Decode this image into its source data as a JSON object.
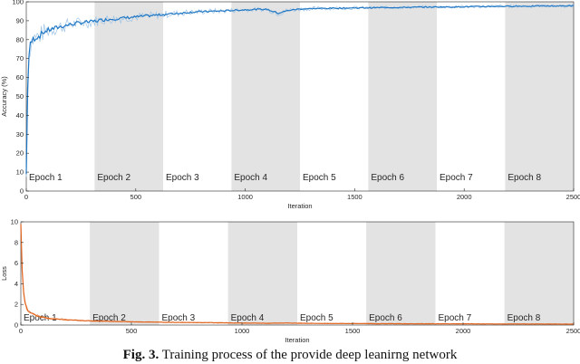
{
  "caption": {
    "lead": "Fig. 3.",
    "text": "Training process  of the  provide deep leanirng network"
  },
  "colors": {
    "accuracy": "#1f77c4",
    "accuracy_light": "#9fc4e6",
    "loss": "#e0621b",
    "loss_light": "#f2b48f",
    "epoch_shade": "#e3e3e3",
    "axis": "#262626"
  },
  "chart_data": [
    {
      "type": "line",
      "xlabel": "Iteration",
      "ylabel": "Accuracy (%)",
      "xlim": [
        0,
        2500
      ],
      "ylim": [
        0,
        100
      ],
      "xticks": [
        0,
        500,
        1000,
        1500,
        2000,
        2500
      ],
      "yticks": [
        0,
        10,
        20,
        30,
        40,
        50,
        60,
        70,
        80,
        90,
        100
      ],
      "grid": false,
      "epochs": [
        {
          "label": "Epoch 1",
          "start": 0,
          "end": 312,
          "shaded": false
        },
        {
          "label": "Epoch 2",
          "start": 312,
          "end": 625,
          "shaded": true
        },
        {
          "label": "Epoch 3",
          "start": 625,
          "end": 937,
          "shaded": false
        },
        {
          "label": "Epoch 4",
          "start": 937,
          "end": 1250,
          "shaded": true
        },
        {
          "label": "Epoch 5",
          "start": 1250,
          "end": 1562,
          "shaded": false
        },
        {
          "label": "Epoch 6",
          "start": 1562,
          "end": 1875,
          "shaded": true
        },
        {
          "label": "Epoch 7",
          "start": 1875,
          "end": 2187,
          "shaded": false
        },
        {
          "label": "Epoch 8",
          "start": 2187,
          "end": 2500,
          "shaded": true
        }
      ],
      "series": [
        {
          "x": [
            0,
            3,
            6,
            10,
            15,
            20,
            30,
            40,
            60,
            80,
            100,
            130,
            160,
            200,
            250,
            300,
            350,
            400,
            450,
            500,
            550,
            600,
            650,
            700,
            750,
            800,
            850,
            900,
            950,
            1000,
            1050,
            1100,
            1150,
            1200,
            1250,
            1300,
            1350,
            1400,
            1450,
            1500,
            1550,
            1600,
            1650,
            1700,
            1750,
            1800,
            1850,
            1900,
            1950,
            2000,
            2050,
            2100,
            2150,
            2200,
            2250,
            2300,
            2350,
            2400,
            2450,
            2500
          ],
          "values": [
            8,
            30,
            55,
            68,
            75,
            78,
            80,
            81,
            82,
            84,
            85,
            86,
            87,
            88,
            89,
            89.5,
            90.5,
            91,
            91.5,
            92,
            92.5,
            93,
            93.5,
            94,
            94.5,
            94.8,
            95,
            95.2,
            95.5,
            95.8,
            96,
            96,
            94,
            95.5,
            96.2,
            96.4,
            96.5,
            96.6,
            96.7,
            96.8,
            96.8,
            96.9,
            97,
            97,
            97.1,
            97.2,
            97.2,
            97.3,
            97.3,
            97.4,
            97.5,
            97.5,
            97.6,
            97.6,
            97.7,
            97.7,
            97.8,
            97.8,
            97.8,
            97.9
          ]
        }
      ]
    },
    {
      "type": "line",
      "xlabel": "Iteration",
      "ylabel": "Loss",
      "xlim": [
        0,
        2500
      ],
      "ylim": [
        0,
        10
      ],
      "xticks": [
        0,
        500,
        1000,
        1500,
        2000,
        2500
      ],
      "yticks": [
        0,
        2,
        4,
        6,
        8,
        10
      ],
      "grid": false,
      "epochs": [
        {
          "label": "Epoch 1",
          "start": 0,
          "end": 312,
          "shaded": false
        },
        {
          "label": "Epoch 2",
          "start": 312,
          "end": 625,
          "shaded": true
        },
        {
          "label": "Epoch 3",
          "start": 625,
          "end": 937,
          "shaded": false
        },
        {
          "label": "Epoch 4",
          "start": 937,
          "end": 1250,
          "shaded": true
        },
        {
          "label": "Epoch 5",
          "start": 1250,
          "end": 1562,
          "shaded": false
        },
        {
          "label": "Epoch 6",
          "start": 1562,
          "end": 1875,
          "shaded": true
        },
        {
          "label": "Epoch 7",
          "start": 1875,
          "end": 2187,
          "shaded": false
        },
        {
          "label": "Epoch 8",
          "start": 2187,
          "end": 2500,
          "shaded": true
        }
      ],
      "series": [
        {
          "x": [
            0,
            3,
            6,
            10,
            15,
            20,
            30,
            40,
            60,
            80,
            100,
            130,
            160,
            200,
            250,
            300,
            400,
            500,
            600,
            700,
            800,
            900,
            1000,
            1100,
            1200,
            1300,
            1400,
            1500,
            1600,
            1700,
            1800,
            1900,
            2000,
            2100,
            2200,
            2300,
            2400,
            2500
          ],
          "values": [
            9.5,
            8.0,
            5.5,
            3.8,
            2.6,
            2.0,
            1.5,
            1.2,
            1.0,
            0.85,
            0.75,
            0.65,
            0.58,
            0.52,
            0.46,
            0.42,
            0.36,
            0.32,
            0.29,
            0.26,
            0.24,
            0.22,
            0.2,
            0.18,
            0.2,
            0.17,
            0.15,
            0.15,
            0.14,
            0.13,
            0.13,
            0.12,
            0.12,
            0.11,
            0.1,
            0.1,
            0.1,
            0.09
          ]
        }
      ]
    }
  ]
}
